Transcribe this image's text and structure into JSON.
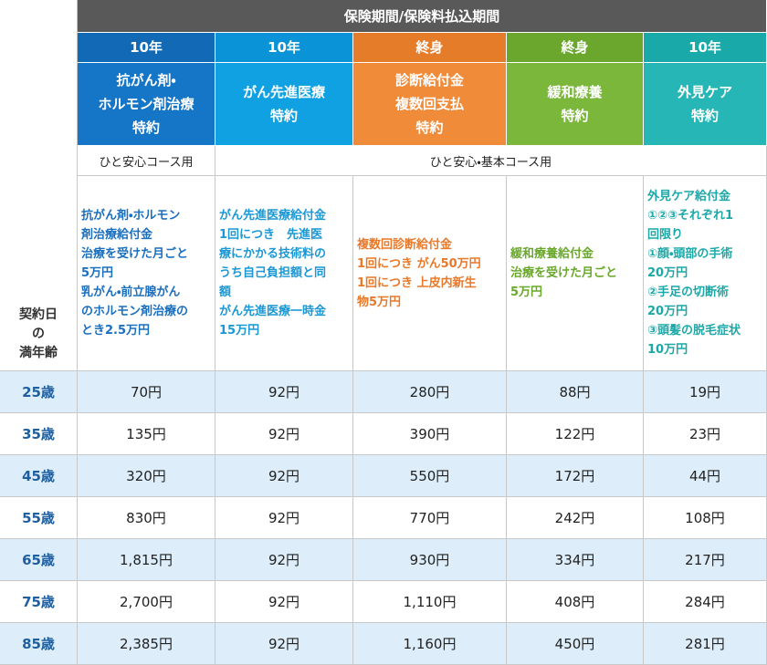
{
  "header": {
    "period_label": "保険期間/保険料払込期間",
    "age_label": [
      "契約日",
      "の",
      "満年齢"
    ]
  },
  "columns": [
    {
      "term": "10年",
      "name": [
        "抗がん剤・",
        "ホルモン剤治療",
        "特約"
      ],
      "description": [
        "抗がん剤・ホルモン",
        "剤治療給付金",
        "治療を受けた月ごと",
        "5万円",
        "乳がん・前立腺がん",
        "のホルモン剤治療の",
        "とき2.5万円"
      ]
    },
    {
      "term": "10年",
      "name": [
        "がん先進医療",
        "特約"
      ],
      "description": [
        "がん先進医療給付金",
        "1回につき　先進医",
        "療にかかる技術料の",
        "うち自己負担額と同",
        "額",
        "がん先進医療一時金",
        "15万円"
      ]
    },
    {
      "term": "終身",
      "name": [
        "診断給付金",
        "複数回支払",
        "特約"
      ],
      "description": [
        "複数回診断給付金",
        "1回につき がん50万円",
        "1回につき 上皮内新生",
        "物5万円"
      ]
    },
    {
      "term": "終身",
      "name": [
        "緩和療養",
        "特約"
      ],
      "description": [
        "緩和療養給付金",
        "治療を受けた月ごと",
        "5万円"
      ]
    },
    {
      "term": "10年",
      "name": [
        "外見ケア",
        "特約"
      ],
      "description": [
        "外見ケア給付金",
        "①②③それぞれ1",
        "回限り",
        "①顔・頭部の手術",
        "20万円",
        "②手足の切断術",
        "20万円",
        "③頭髪の脱毛症状",
        "10万円"
      ]
    }
  ],
  "course_labels": [
    "ひと安心コース用",
    "ひと安心・基本コース用"
  ],
  "rows": [
    {
      "age": "25歳",
      "premiums": [
        "70円",
        "92円",
        "280円",
        "88円",
        "19円"
      ]
    },
    {
      "age": "35歳",
      "premiums": [
        "135円",
        "92円",
        "390円",
        "122円",
        "23円"
      ]
    },
    {
      "age": "45歳",
      "premiums": [
        "320円",
        "92円",
        "550円",
        "172円",
        "44円"
      ]
    },
    {
      "age": "55歳",
      "premiums": [
        "830円",
        "92円",
        "770円",
        "242円",
        "108円"
      ]
    },
    {
      "age": "65歳",
      "premiums": [
        "1,815円",
        "92円",
        "930円",
        "334円",
        "217円"
      ]
    },
    {
      "age": "75歳",
      "premiums": [
        "2,700円",
        "92円",
        "1,110円",
        "408円",
        "284円"
      ]
    },
    {
      "age": "85歳",
      "premiums": [
        "2,385円",
        "92円",
        "1,160円",
        "450円",
        "281円"
      ]
    }
  ]
}
